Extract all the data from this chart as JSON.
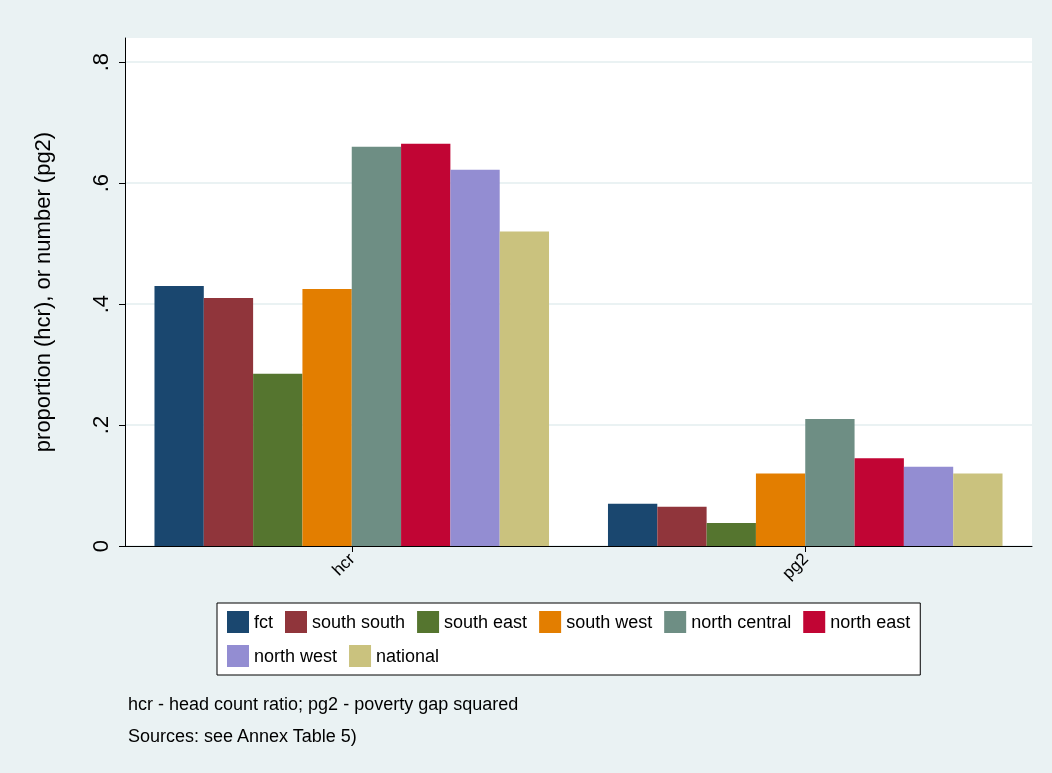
{
  "chart_data": {
    "type": "bar",
    "ylabel": "proportion (hcr), or number (pg2)",
    "categories": [
      "hcr",
      "pg2"
    ],
    "series": [
      {
        "name": "fct",
        "color": "#1a476f",
        "values": [
          0.43,
          0.07
        ]
      },
      {
        "name": "south south",
        "color": "#90353b",
        "values": [
          0.41,
          0.065
        ]
      },
      {
        "name": "south east",
        "color": "#55752f",
        "values": [
          0.285,
          0.038
        ]
      },
      {
        "name": "south west",
        "color": "#e37e00",
        "values": [
          0.425,
          0.12
        ]
      },
      {
        "name": "north central",
        "color": "#6e8e84",
        "values": [
          0.66,
          0.21
        ]
      },
      {
        "name": "north east",
        "color": "#c10534",
        "values": [
          0.665,
          0.145
        ]
      },
      {
        "name": "north west",
        "color": "#938dd2",
        "values": [
          0.622,
          0.131
        ]
      },
      {
        "name": "national",
        "color": "#cac27e",
        "values": [
          0.52,
          0.12
        ]
      }
    ],
    "ylim": [
      0,
      0.84
    ],
    "yticks": [
      {
        "value": 0,
        "label": "0"
      },
      {
        "value": 0.2,
        "label": ".2"
      },
      {
        "value": 0.4,
        "label": ".4"
      },
      {
        "value": 0.6,
        "label": ".6"
      },
      {
        "value": 0.8,
        "label": ".8"
      }
    ],
    "grid": "y",
    "legend": "bottom",
    "annotations": [
      "hcr - head count ratio; pg2 - poverty gap squared",
      "Sources: see Annex Table 5)"
    ]
  }
}
